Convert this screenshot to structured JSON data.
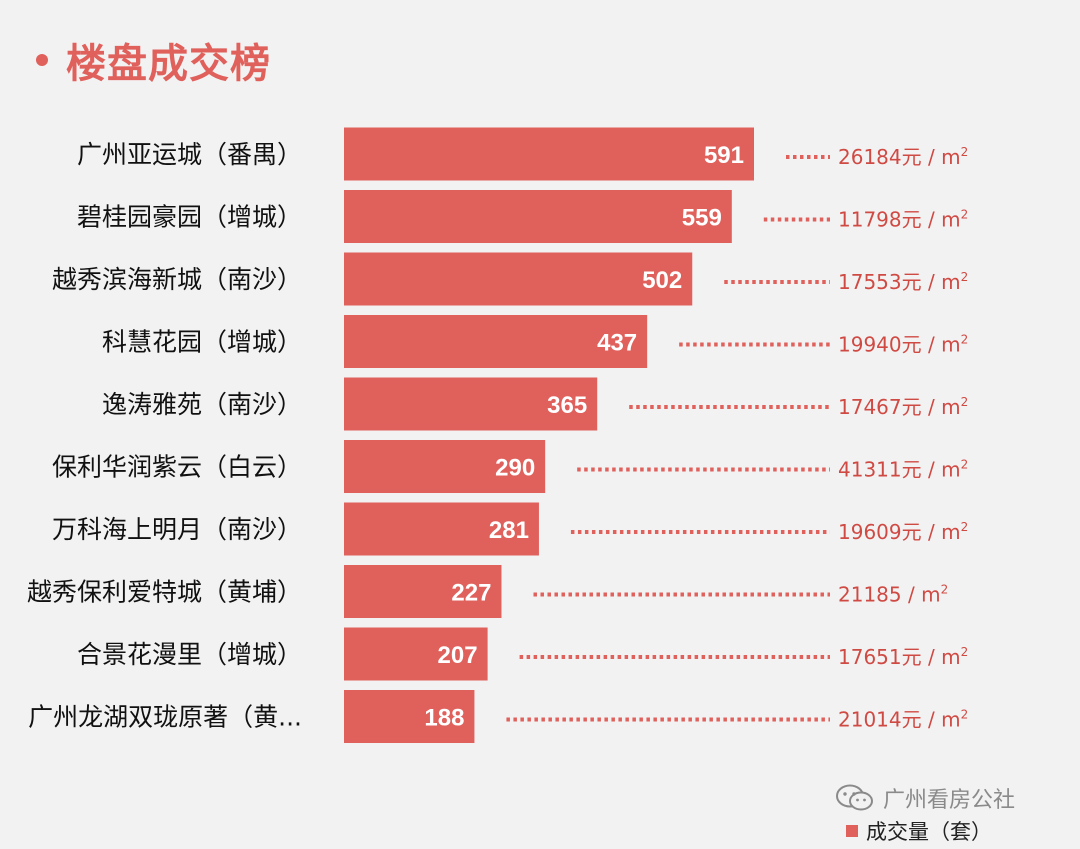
{
  "title": "楼盘成交榜",
  "colors": {
    "bar": "#e0605c",
    "accent": "#e0605c",
    "price_text": "#d04a44",
    "dots": "#e0605c"
  },
  "watermark": {
    "text": "广州看房公社",
    "icon": "wechat-icon"
  },
  "chart_data": {
    "type": "bar",
    "orientation": "horizontal",
    "categories": [
      "广州亚运城（番禺）",
      "碧桂园豪园（增城）",
      "越秀滨海新城（南沙）",
      "科慧花园（增城）",
      "逸涛雅苑（南沙）",
      "保利华润紫云（白云）",
      "万科海上明月（南沙）",
      "越秀保利爱特城（黄埔）",
      "合景花漫里（增城）",
      "广州龙湖双珑原著（黄..."
    ],
    "series": [
      {
        "name": "成交量（套）",
        "values": [
          591,
          559,
          502,
          437,
          365,
          290,
          281,
          227,
          207,
          188
        ]
      }
    ],
    "price_labels": [
      "26184元 / m",
      "11798元 / m",
      "17553元 / m",
      "19940元 / m",
      "17467元 / m",
      "41311元 / m",
      "19609元 / m",
      "21185 / m",
      "17651元 / m",
      "21014元 / m"
    ],
    "price_unit_superscript": "2",
    "legend": "bottom-right",
    "grid": false
  }
}
